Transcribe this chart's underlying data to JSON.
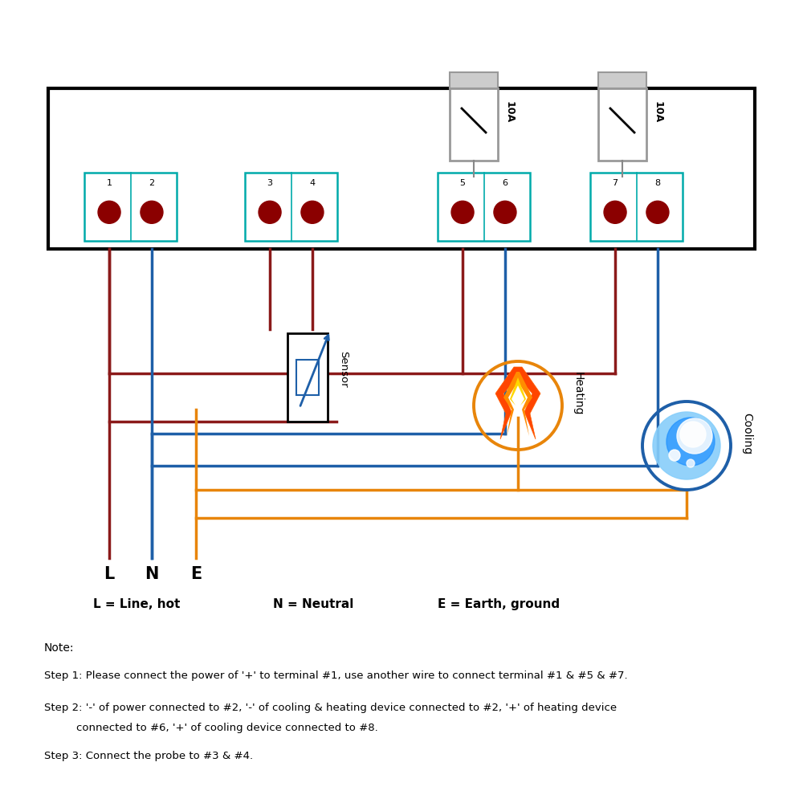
{
  "bg_color": "#ffffff",
  "box_color": "#000000",
  "terminal_border_color": "#00AAAA",
  "terminal_dot_color": "#8B0000",
  "wire_dark_red": "#8B1A1A",
  "wire_blue": "#1E5FA8",
  "wire_orange": "#E8850A",
  "notes": [
    "Note:",
    "Step 1: Please connect the power of '+' to terminal #1, use another wire to connect terminal #1 & #5 & #7.",
    "Step 2: '-' of power connected to #2, '-' of cooling & heating device connected to #2, '+' of heating device",
    "        connected to #6, '+' of cooling device connected to #8.",
    "Step 3: Connect the probe to #3 & #4."
  ]
}
